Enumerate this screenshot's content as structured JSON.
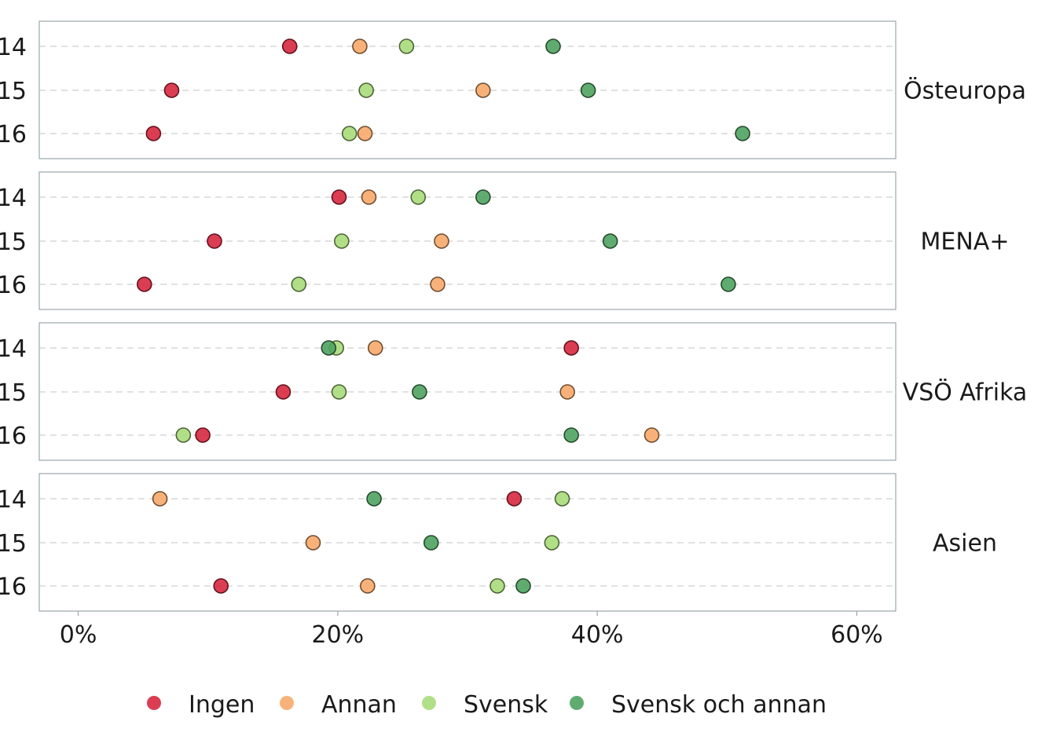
{
  "chart_data": {
    "type": "scatter",
    "x_range": [
      -3,
      63
    ],
    "x_ticks": [
      0,
      20,
      40,
      60
    ],
    "x_tick_labels": [
      "0%",
      "20%",
      "40%",
      "60%"
    ],
    "y_categories": [
      "14",
      "15",
      "16"
    ],
    "grid": "horizontal dashed",
    "legend_position": "bottom",
    "series": [
      {
        "name": "Ingen",
        "color": "#d7283f"
      },
      {
        "name": "Annan",
        "color": "#f7aa6a"
      },
      {
        "name": "Svensk",
        "color": "#a9db7a"
      },
      {
        "name": "Svensk och annan",
        "color": "#4fa360"
      }
    ],
    "facets": [
      {
        "label": "Östeuropa",
        "values": {
          "Ingen": [
            16.3,
            7.2,
            5.8
          ],
          "Annan": [
            21.7,
            31.2,
            22.1
          ],
          "Svensk": [
            25.3,
            22.2,
            20.9
          ],
          "Svensk och annan": [
            36.6,
            39.3,
            51.2
          ]
        }
      },
      {
        "label": "MENA+",
        "values": {
          "Ingen": [
            20.1,
            10.5,
            5.1
          ],
          "Annan": [
            22.4,
            28.0,
            27.7
          ],
          "Svensk": [
            26.2,
            20.3,
            17.0
          ],
          "Svensk och annan": [
            31.2,
            41.0,
            50.1
          ]
        }
      },
      {
        "label": "VSÖ Afrika",
        "values": {
          "Ingen": [
            38.0,
            15.8,
            9.6
          ],
          "Annan": [
            22.9,
            37.7,
            44.2
          ],
          "Svensk": [
            19.9,
            20.1,
            8.1
          ],
          "Svensk och annan": [
            19.3,
            26.3,
            38.0
          ]
        }
      },
      {
        "label": "Asien",
        "values": {
          "Ingen": [
            33.6,
            null,
            11.0
          ],
          "Annan": [
            6.3,
            18.1,
            22.3
          ],
          "Svensk": [
            37.3,
            36.5,
            32.3
          ],
          "Svensk och annan": [
            22.8,
            27.2,
            34.3
          ]
        }
      }
    ]
  }
}
